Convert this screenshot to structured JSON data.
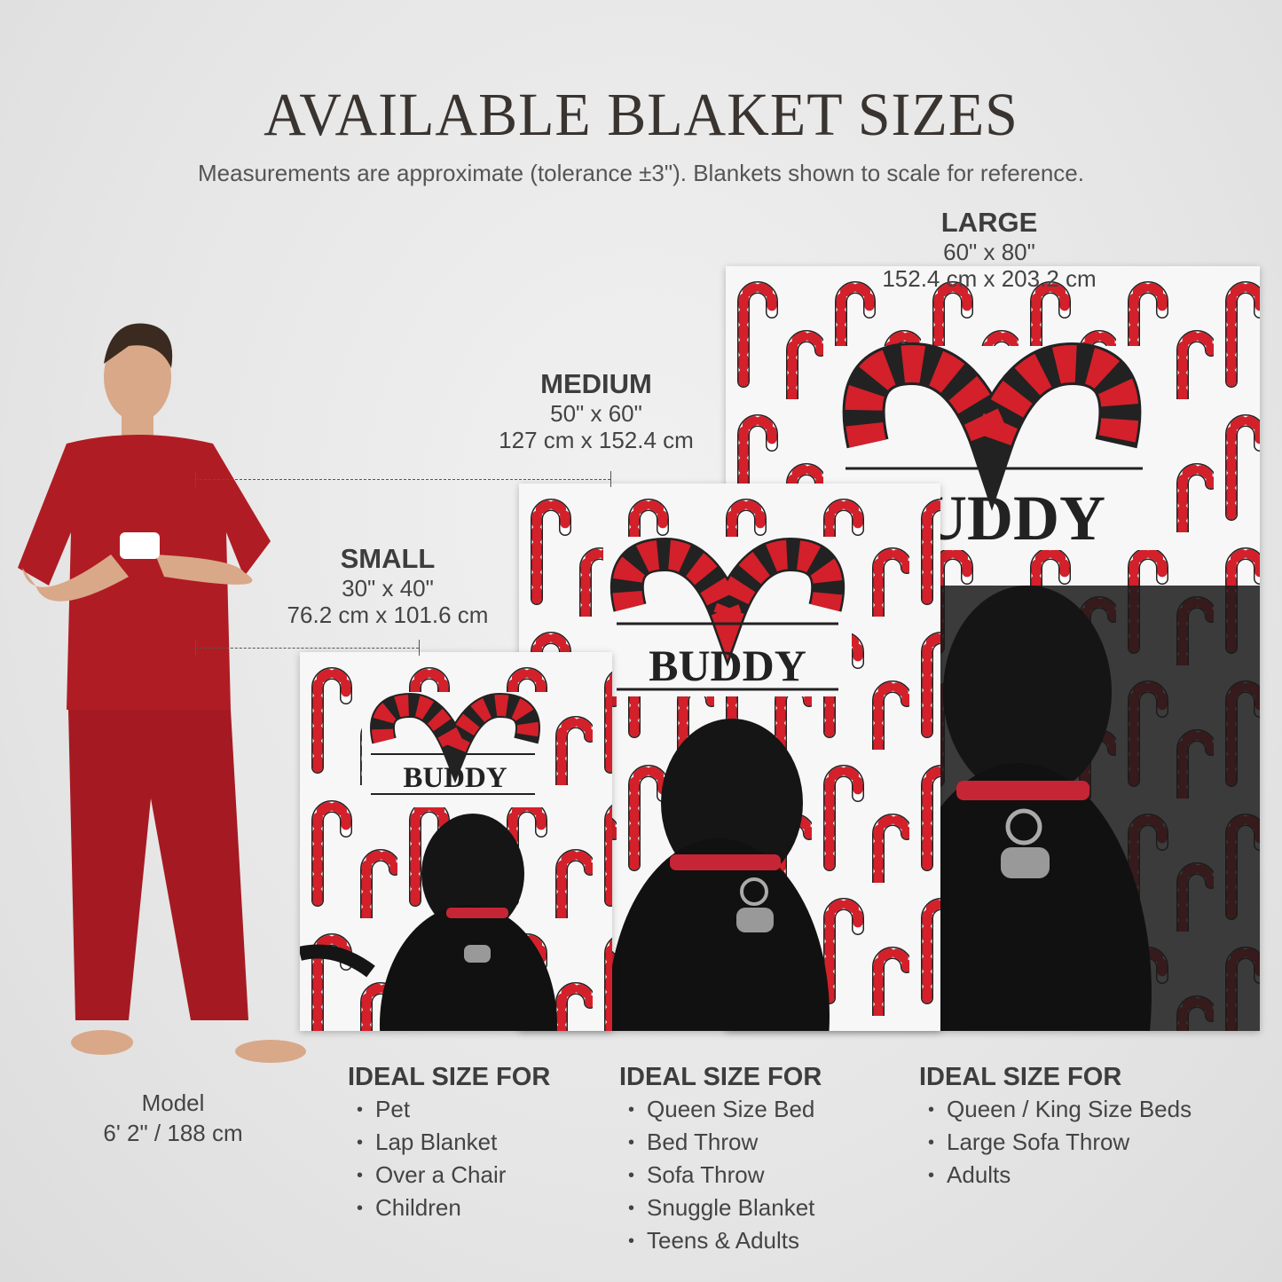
{
  "header": {
    "title": "AVAILABLE BLAKET SIZES",
    "subtitle": "Measurements are approximate (tolerance ±3\"). Blankets shown to scale for reference."
  },
  "sizes": [
    {
      "name": "SMALL",
      "inches": "30\" x 40\"",
      "cm": "76.2 cm x 101.6 cm",
      "ideal_heading": "IDEAL SIZE FOR",
      "ideal": [
        "Pet",
        "Lap Blanket",
        "Over a Chair",
        "Children"
      ]
    },
    {
      "name": "MEDIUM",
      "inches": "50\" x 60\"",
      "cm": "127 cm x 152.4 cm",
      "ideal_heading": "IDEAL SIZE FOR",
      "ideal": [
        "Queen Size Bed",
        "Bed Throw",
        "Sofa Throw",
        "Snuggle Blanket",
        "Teens & Adults"
      ]
    },
    {
      "name": "LARGE",
      "inches": "60\" x 80\"",
      "cm": "152.4 cm x 203.2 cm",
      "ideal_heading": "IDEAL SIZE FOR",
      "ideal": [
        "Queen / King Size Beds",
        "Large Sofa Throw",
        "Adults"
      ]
    }
  ],
  "blanket_name": "BUDDY",
  "model": {
    "label": "Model",
    "height": "6' 2\" / 188 cm"
  },
  "colors": {
    "cane_red": "#d3202a",
    "shirt_red": "#b01c24",
    "background": "#e8e8e8"
  }
}
